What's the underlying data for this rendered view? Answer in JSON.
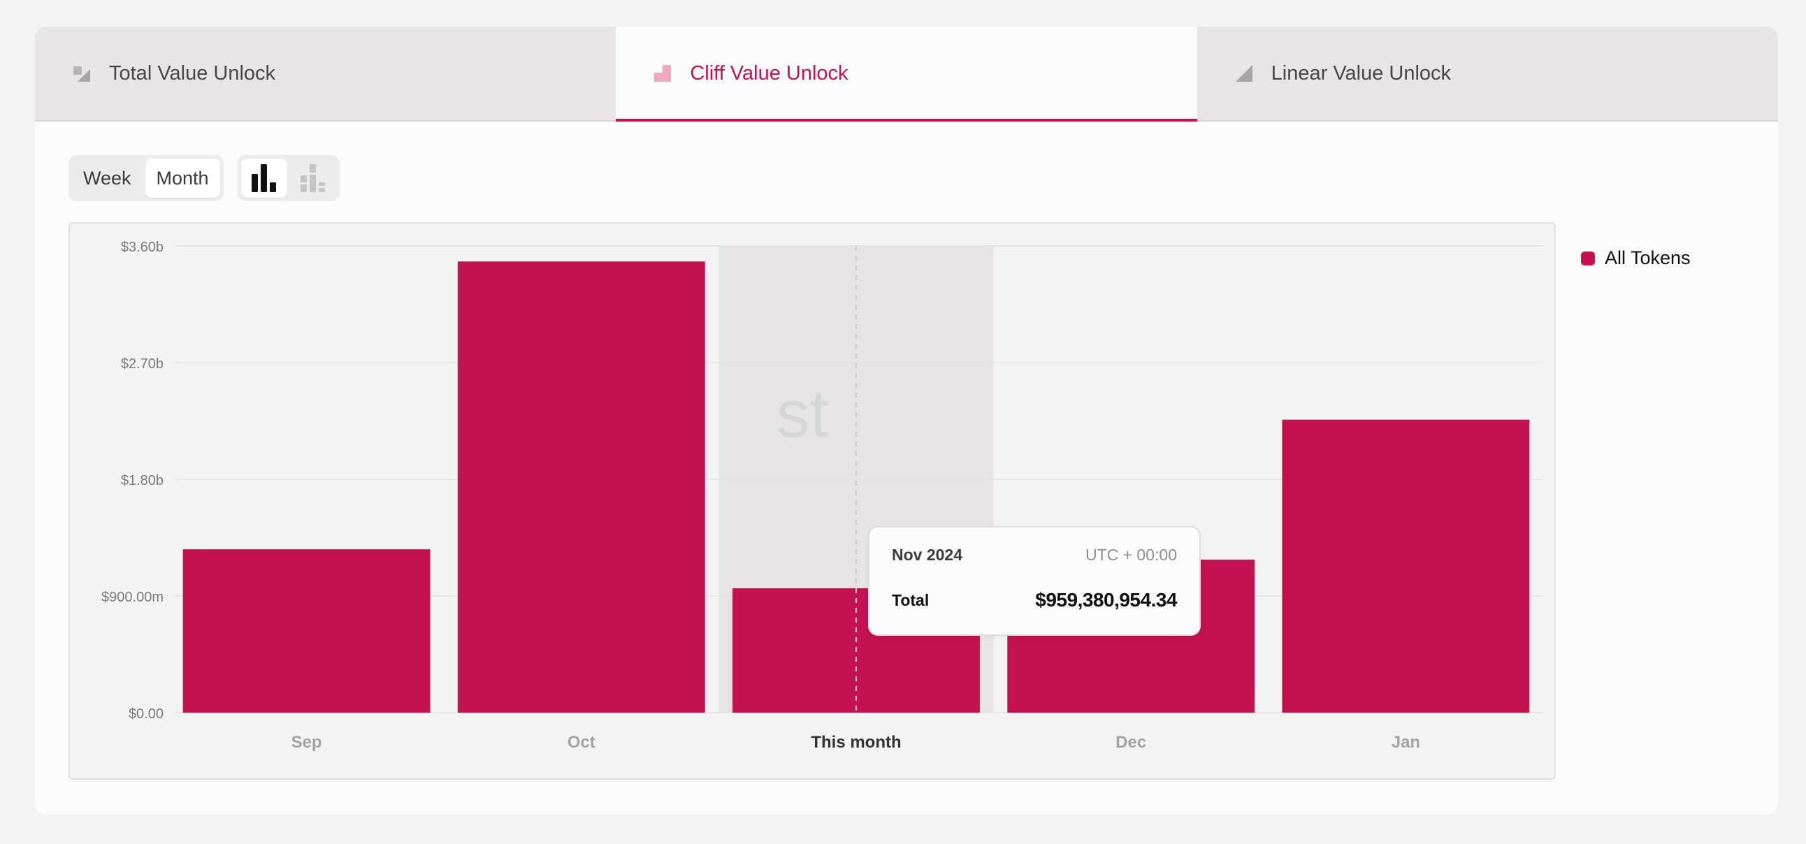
{
  "tabs": [
    {
      "label": "Total Value Unlock",
      "icon": "total-value-icon",
      "active": false
    },
    {
      "label": "Cliff Value Unlock",
      "icon": "cliff-value-icon",
      "active": true
    },
    {
      "label": "Linear Value Unlock",
      "icon": "linear-value-icon",
      "active": false
    }
  ],
  "toolbar": {
    "period_options": [
      "Week",
      "Month"
    ],
    "selected_period": "Month",
    "view_options": [
      "bar-chart-icon",
      "stacked-bar-chart-icon"
    ],
    "selected_view": "bar-chart-icon"
  },
  "legend": {
    "label": "All Tokens",
    "color": "#c41150"
  },
  "watermark": "st",
  "tooltip": {
    "date": "Nov 2024",
    "timezone": "UTC + 00:00",
    "label": "Total",
    "value": "$959,380,954.34"
  },
  "colors": {
    "accent": "#c41150",
    "highlight_band": "#e7e4e5"
  },
  "chart_data": {
    "type": "bar",
    "categories": [
      "Sep",
      "Oct",
      "This month",
      "Dec",
      "Jan"
    ],
    "highlighted_category": "This month",
    "series": [
      {
        "name": "All Tokens",
        "values": [
          1260000000,
          3480000000,
          959380954.34,
          1180000000,
          2260000000
        ]
      }
    ],
    "y_ticks": [
      {
        "value": 0,
        "label": "$0.00"
      },
      {
        "value": 900000000,
        "label": "$900.00m"
      },
      {
        "value": 1800000000,
        "label": "$1.80b"
      },
      {
        "value": 2700000000,
        "label": "$2.70b"
      },
      {
        "value": 3600000000,
        "label": "$3.60b"
      }
    ],
    "ylim": [
      0,
      3600000000
    ],
    "grid": true,
    "legend_position": "right"
  }
}
